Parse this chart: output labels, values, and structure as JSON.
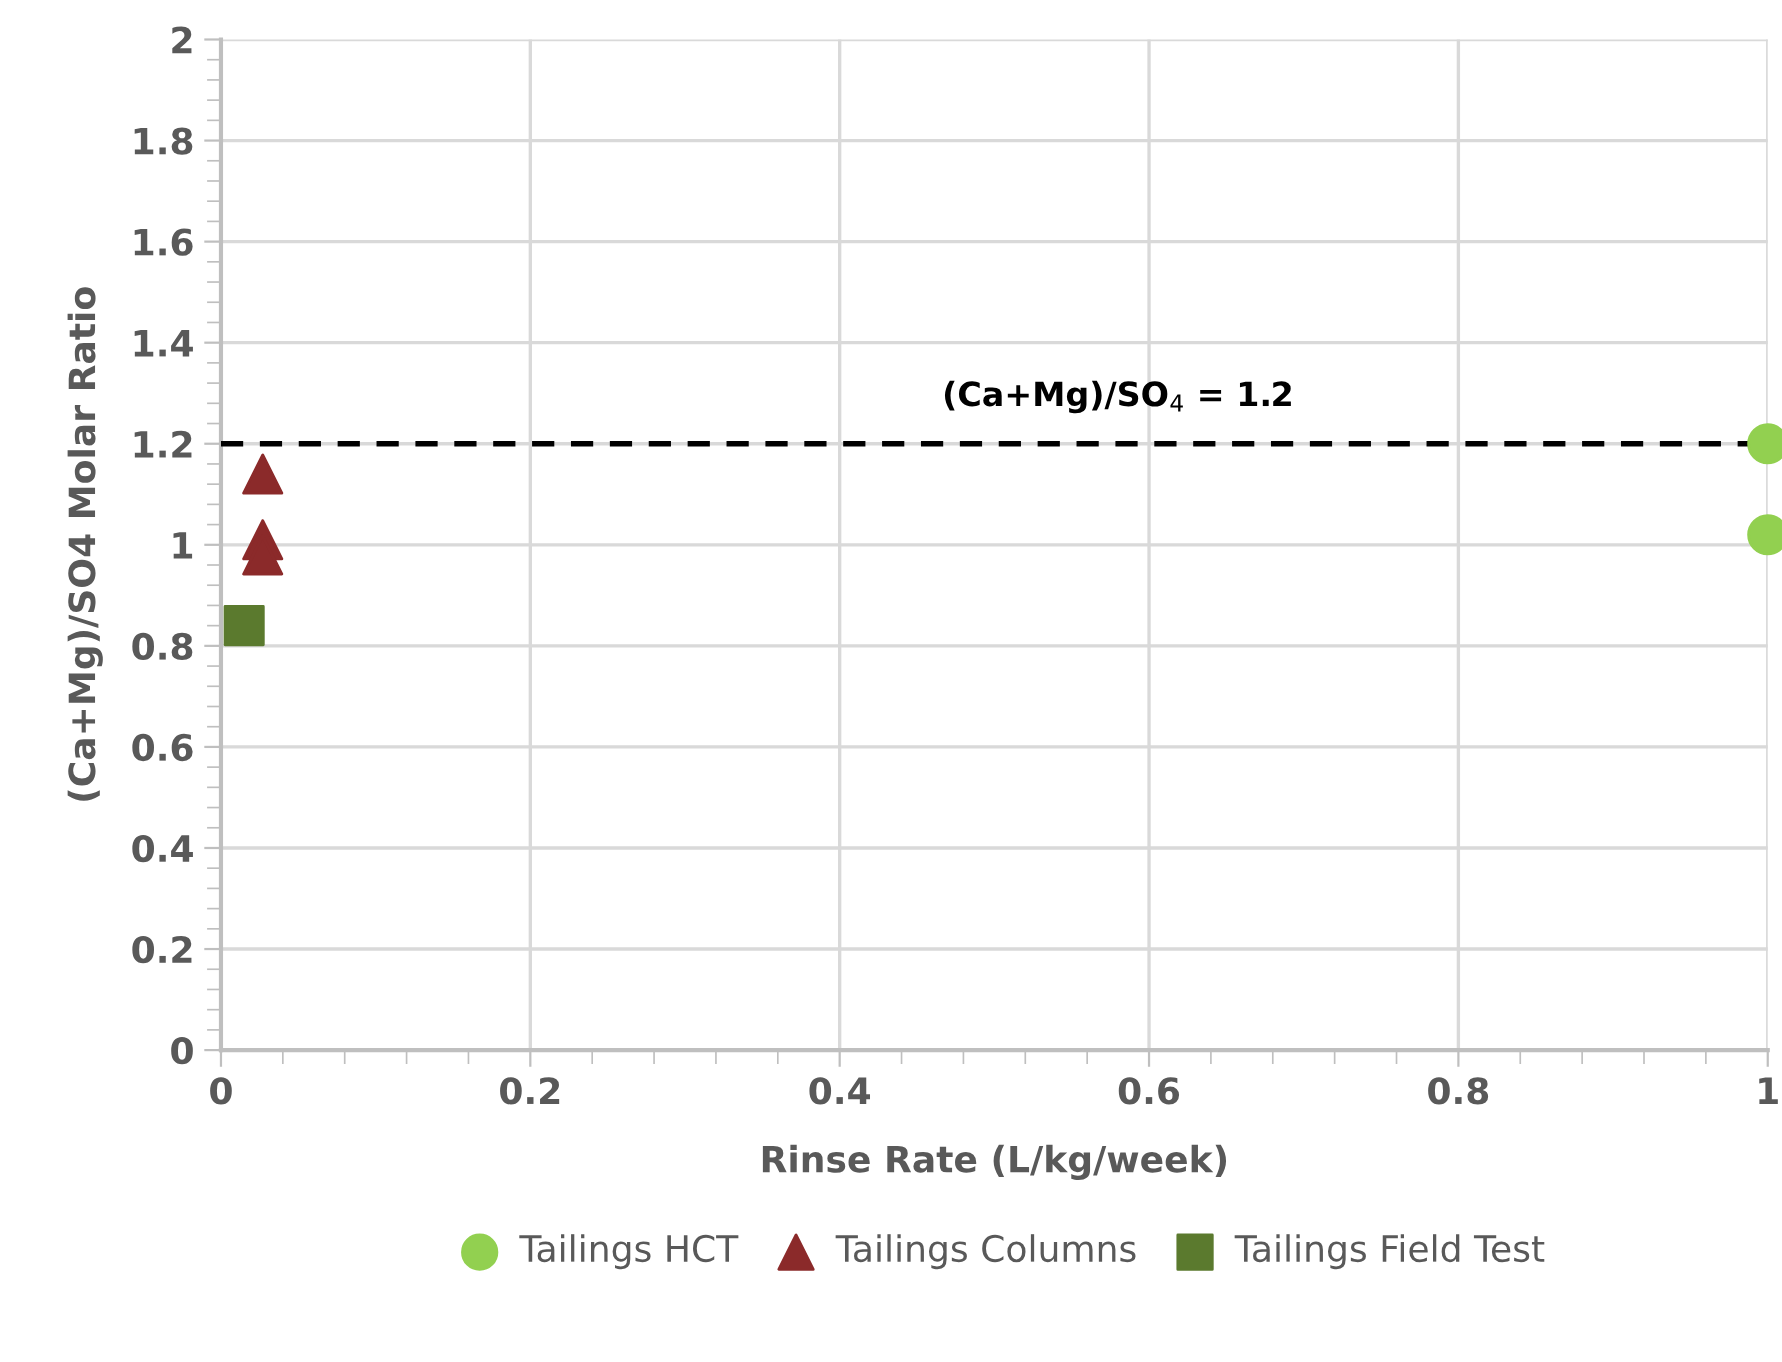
{
  "chart_data": {
    "type": "scatter",
    "xlabel": "Rinse Rate (L/kg/week)",
    "ylabel": "(Ca+Mg)/SO4 Molar Ratio",
    "xlim": [
      0,
      1
    ],
    "xticks": [
      0,
      0.2,
      0.4,
      0.6,
      0.8,
      1
    ],
    "ylim": [
      0,
      2
    ],
    "yticks": [
      0,
      0.2,
      0.4,
      0.6,
      0.8,
      1,
      1.2,
      1.4,
      1.6,
      1.8,
      2
    ],
    "grid": true,
    "legend": "bottom",
    "series": [
      {
        "name": "Tailings HCT",
        "color": "#92d050",
        "marker": "circle",
        "x": [
          1,
          1
        ],
        "values": [
          1.2,
          1.02
        ]
      },
      {
        "name": "Tailings Columns",
        "color": "#8b2a2a",
        "marker": "triangle",
        "x": [
          0.027,
          0.027,
          0.027
        ],
        "values": [
          1.14,
          1.01,
          0.98
        ]
      },
      {
        "name": "Tailings Field Test",
        "color": "#5b7a2e",
        "marker": "square",
        "x": [
          0.015
        ],
        "values": [
          0.84
        ]
      }
    ],
    "ref_lines": [
      {
        "axis": "y",
        "value": 1.2,
        "label": "(Ca+Mg)/SO$_{4}$ = 1.2",
        "color": "#000000",
        "line_style": "dashed"
      }
    ]
  }
}
